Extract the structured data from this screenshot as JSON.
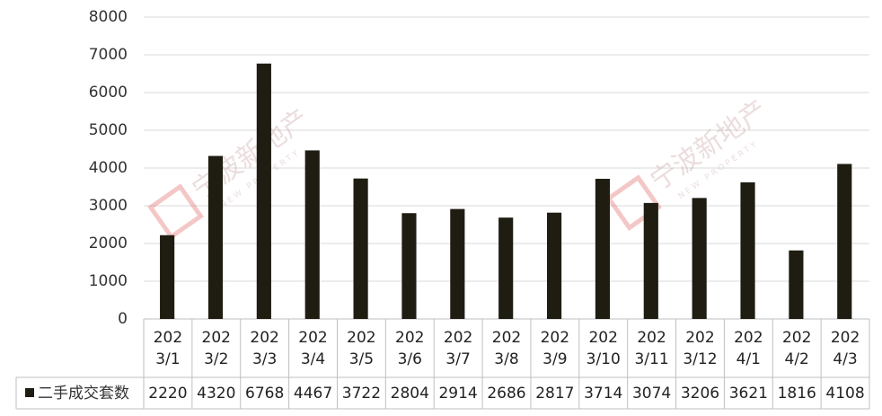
{
  "chart_data": {
    "type": "bar",
    "categories": [
      "2023/1",
      "2023/2",
      "2023/3",
      "2023/4",
      "2023/5",
      "2023/6",
      "2023/7",
      "2023/8",
      "2023/9",
      "2023/10",
      "2023/11",
      "2023/12",
      "2024/1",
      "2024/2",
      "2024/3"
    ],
    "series": [
      {
        "name": "二手成交套数",
        "color": "#1f1c12",
        "values": [
          2220,
          4320,
          6768,
          4467,
          3722,
          2804,
          2914,
          2686,
          2817,
          3714,
          3074,
          3206,
          3621,
          1816,
          4108
        ]
      }
    ],
    "ylim": [
      0,
      8000
    ],
    "yticks": [
      0,
      1000,
      2000,
      3000,
      4000,
      5000,
      6000,
      7000,
      8000
    ],
    "grid": true,
    "legend": "table",
    "watermark": "宁波新地产",
    "watermark_sub": "NEW PROPERTY"
  }
}
